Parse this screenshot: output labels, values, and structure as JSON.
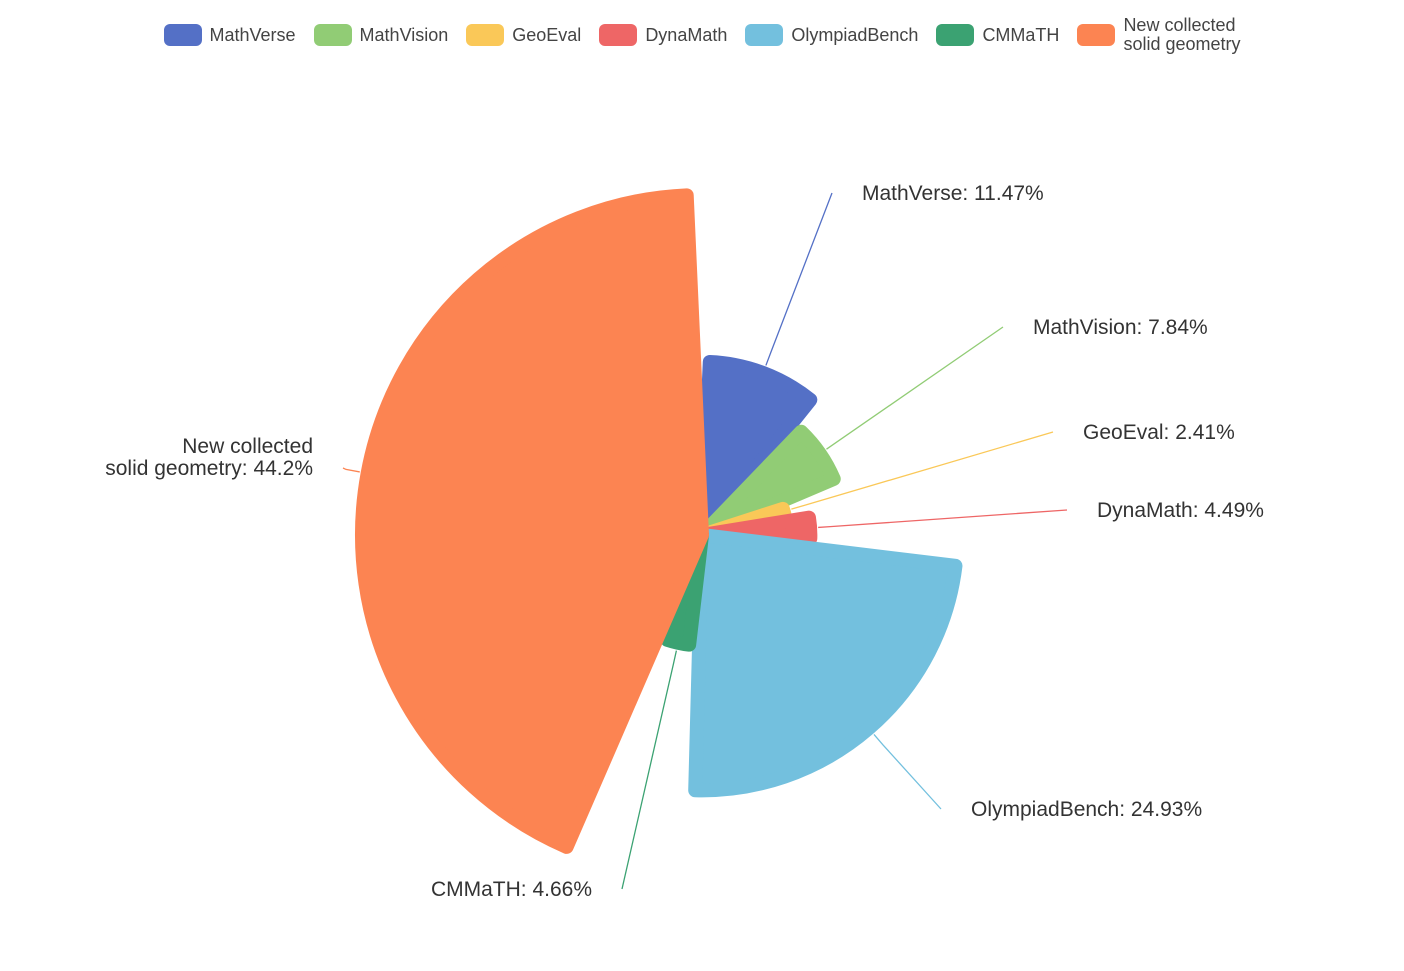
{
  "legend": [
    {
      "name": "MathVerse",
      "color": "#5470c6"
    },
    {
      "name": "MathVision",
      "color": "#91cc75"
    },
    {
      "name": "GeoEval",
      "color": "#fac858"
    },
    {
      "name": "DynaMath",
      "color": "#ee6666"
    },
    {
      "name": "OlympiadBench",
      "color": "#73c0de"
    },
    {
      "name": "CMMaTH",
      "color": "#3ba272"
    },
    {
      "name": "New collected\nsolid geometry",
      "color": "#fc8452"
    }
  ],
  "chart_data": {
    "type": "pie",
    "title": "",
    "rose": true,
    "legend_position": "top-center",
    "slices": [
      {
        "name": "MathVerse",
        "value": 11.47,
        "label": "MathVerse: 11.47%",
        "color": "#5470c6"
      },
      {
        "name": "MathVision",
        "value": 7.84,
        "label": "MathVision: 7.84%",
        "color": "#91cc75"
      },
      {
        "name": "GeoEval",
        "value": 2.41,
        "label": "GeoEval: 2.41%",
        "color": "#fac858"
      },
      {
        "name": "DynaMath",
        "value": 4.49,
        "label": "DynaMath: 4.49%",
        "color": "#ee6666"
      },
      {
        "name": "OlympiadBench",
        "value": 24.93,
        "label": "OlympiadBench: 24.93%",
        "color": "#73c0de"
      },
      {
        "name": "CMMaTH",
        "value": 4.66,
        "label": "CMMaTH: 4.66%",
        "color": "#3ba272"
      },
      {
        "name": "New collected solid geometry",
        "value": 44.2,
        "label": "New collected\nsolid geometry: 44.2%",
        "color": "#fc8452"
      }
    ]
  }
}
